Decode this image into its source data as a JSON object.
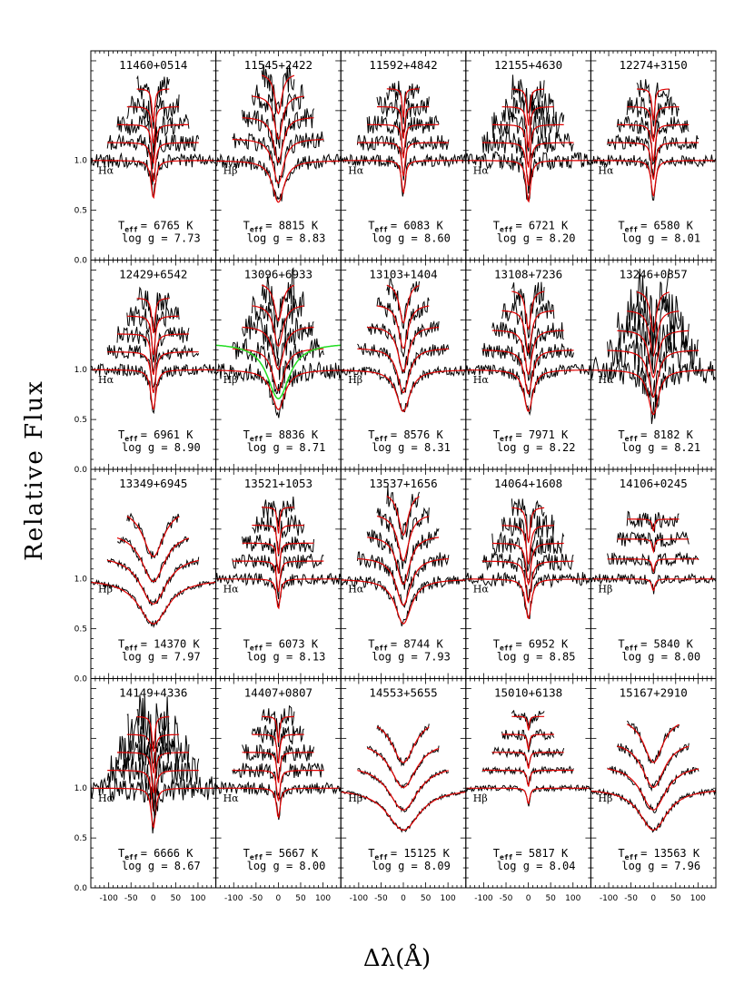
{
  "chart_data": {
    "type": "line",
    "title": "",
    "xlabel": "Δλ(Å)",
    "ylabel": "Relative Flux",
    "xlim": [
      -140,
      140
    ],
    "ylim": [
      0.0,
      2.1
    ],
    "xticks": [
      -100,
      -50,
      0,
      50,
      100
    ],
    "xtick_labels": [
      "-100",
      "-50",
      "0",
      "50",
      "100"
    ],
    "yticks": [
      0.0,
      0.5,
      1.0
    ],
    "ytick_labels": [
      "0.0",
      "0.5",
      "1.0"
    ],
    "grid": false,
    "series": [
      {
        "name": "",
        "color": "#000000"
      },
      {
        "name": "",
        "color": "#e00000"
      },
      {
        "name": "",
        "color": "#22dd22"
      }
    ],
    "panels": [
      {
        "id": "11460+0514",
        "line": "Hα",
        "teff_label": "T",
        "teff_sub": "eff",
        "teff": "= 6765 K",
        "logg": "log g = 7.73",
        "depth": 0.38,
        "width": 6,
        "noise": 0.07,
        "top": 5,
        "spacing": 0.18
      },
      {
        "id": "11545+2422",
        "line": "Hβ",
        "teff_label": "T",
        "teff_sub": "eff",
        "teff": "= 8815 K",
        "logg": "log g = 8.83",
        "depth": 0.42,
        "width": 16,
        "noise": 0.07,
        "top": 5,
        "spacing": 0.22
      },
      {
        "id": "11592+4842",
        "line": "Hα",
        "teff_label": "T",
        "teff_sub": "eff",
        "teff": "= 6083 K",
        "logg": "log g = 8.60",
        "depth": 0.33,
        "width": 5,
        "noise": 0.06,
        "top": 5,
        "spacing": 0.18
      },
      {
        "id": "12155+4630",
        "line": "Hα",
        "teff_label": "T",
        "teff_sub": "eff",
        "teff": "= 6721 K",
        "logg": "log g = 8.20",
        "depth": 0.42,
        "width": 6,
        "noise": 0.09,
        "top": 5,
        "spacing": 0.18
      },
      {
        "id": "12274+3150",
        "line": "Hα",
        "teff_label": "T",
        "teff_sub": "eff",
        "teff": "= 6580 K",
        "logg": "log g = 8.01",
        "depth": 0.36,
        "width": 6,
        "noise": 0.06,
        "top": 5,
        "spacing": 0.18
      },
      {
        "id": "12429+6542",
        "line": "Hα",
        "teff_label": "T",
        "teff_sub": "eff",
        "teff": "= 6961 K",
        "logg": "log g = 8.90",
        "depth": 0.4,
        "width": 7,
        "noise": 0.06,
        "top": 5,
        "spacing": 0.18
      },
      {
        "id": "13096+6933",
        "line": "Hβ",
        "teff_label": "T",
        "teff_sub": "eff",
        "teff": "= 8836 K",
        "logg": "log g = 8.71",
        "depth": 0.4,
        "width": 18,
        "noise": 0.09,
        "top": 5,
        "spacing": 0.22,
        "green": true
      },
      {
        "id": "13103+1404",
        "line": "Hβ",
        "teff_label": "T",
        "teff_sub": "eff",
        "teff": "= 8576 K",
        "logg": "log g = 8.31",
        "depth": 0.42,
        "width": 18,
        "noise": 0.05,
        "top": 5,
        "spacing": 0.22
      },
      {
        "id": "13108+7236",
        "line": "Hα",
        "teff_label": "T",
        "teff_sub": "eff",
        "teff": "= 7971 K",
        "logg": "log g = 8.22",
        "depth": 0.42,
        "width": 12,
        "noise": 0.06,
        "top": 5,
        "spacing": 0.2
      },
      {
        "id": "13246+0857",
        "line": "Hα",
        "teff_label": "T",
        "teff_sub": "eff",
        "teff": "= 8182 K",
        "logg": "log g = 8.21",
        "depth": 0.45,
        "width": 14,
        "noise": 0.13,
        "top": 5,
        "spacing": 0.2
      },
      {
        "id": "13349+6945",
        "line": "Hβ",
        "teff_label": "T",
        "teff_sub": "eff",
        "teff": "= 14370 K",
        "logg": "log g = 7.97",
        "depth": 0.45,
        "width": 40,
        "noise": 0.03,
        "top": 4,
        "spacing": 0.24
      },
      {
        "id": "13521+1053",
        "line": "Hα",
        "teff_label": "T",
        "teff_sub": "eff",
        "teff": "= 6073 K",
        "logg": "log g = 8.13",
        "depth": 0.3,
        "width": 5,
        "noise": 0.06,
        "top": 5,
        "spacing": 0.18
      },
      {
        "id": "13537+1656",
        "line": "Hα",
        "teff_label": "T",
        "teff_sub": "eff",
        "teff": "= 8744 K",
        "logg": "log g = 7.93",
        "depth": 0.45,
        "width": 22,
        "noise": 0.06,
        "top": 5,
        "spacing": 0.22
      },
      {
        "id": "14064+1608",
        "line": "Hα",
        "teff_label": "T",
        "teff_sub": "eff",
        "teff": "= 6952 K",
        "logg": "log g = 8.85",
        "depth": 0.4,
        "width": 8,
        "noise": 0.07,
        "top": 5,
        "spacing": 0.18
      },
      {
        "id": "14106+0245",
        "line": "Hβ",
        "teff_label": "T",
        "teff_sub": "eff",
        "teff": "= 5840 K",
        "logg": "log g = 8.00",
        "depth": 0.12,
        "width": 4,
        "noise": 0.05,
        "top": 4,
        "spacing": 0.2
      },
      {
        "id": "14149+4336",
        "line": "Hα",
        "teff_label": "T",
        "teff_sub": "eff",
        "teff": "= 6666 K",
        "logg": "log g = 8.67",
        "depth": 0.4,
        "width": 6,
        "noise": 0.12,
        "top": 5,
        "spacing": 0.18
      },
      {
        "id": "14407+0807",
        "line": "Hα",
        "teff_label": "T",
        "teff_sub": "eff",
        "teff": "= 5667 K",
        "logg": "log g = 8.00",
        "depth": 0.3,
        "width": 5,
        "noise": 0.06,
        "top": 5,
        "spacing": 0.18
      },
      {
        "id": "14553+5655",
        "line": "Hβ",
        "teff_label": "T",
        "teff_sub": "eff",
        "teff": "= 15125 K",
        "logg": "log g = 8.09",
        "depth": 0.42,
        "width": 45,
        "noise": 0.02,
        "top": 4,
        "spacing": 0.24
      },
      {
        "id": "15010+6138",
        "line": "Hβ",
        "teff_label": "T",
        "teff_sub": "eff",
        "teff": "= 5817 K",
        "logg": "log g = 8.04",
        "depth": 0.16,
        "width": 4,
        "noise": 0.03,
        "top": 5,
        "spacing": 0.18
      },
      {
        "id": "15167+2910",
        "line": "Hβ",
        "teff_label": "T",
        "teff_sub": "eff",
        "teff": "= 13563 K",
        "logg": "log g = 7.96",
        "depth": 0.42,
        "width": 38,
        "noise": 0.03,
        "top": 4,
        "spacing": 0.24
      }
    ]
  }
}
